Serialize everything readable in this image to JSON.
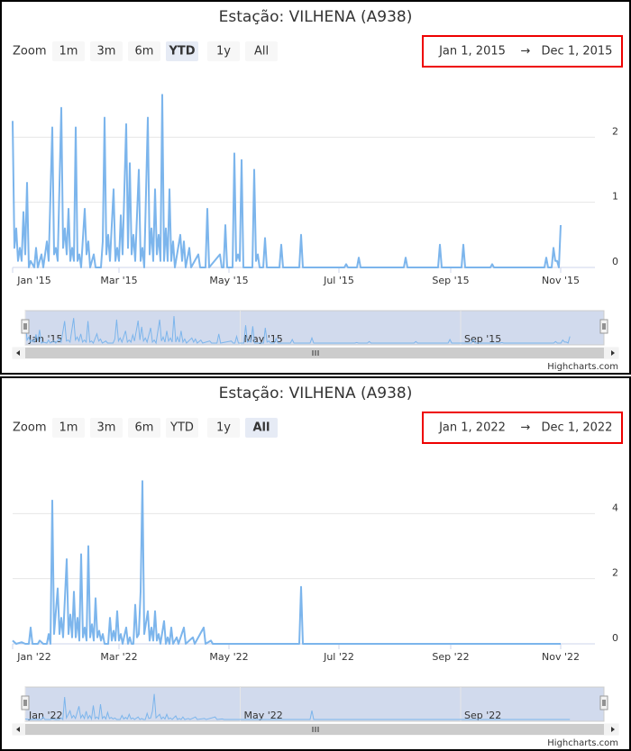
{
  "chart_data": [
    {
      "type": "line",
      "title": "Estação: VILHENA (A938)",
      "zoom_label": "Zoom",
      "zoom_buttons": [
        "1m",
        "3m",
        "6m",
        "YTD",
        "1y",
        "All"
      ],
      "zoom_selected": 3,
      "zoom_disabled": [
        4,
        5
      ],
      "range_from": "Jan 1, 2015",
      "range_arrow": "→",
      "range_to": "Dec 1, 2015",
      "color": "#7cb5ec",
      "x": [
        0,
        1,
        2,
        3,
        4,
        5,
        6,
        7,
        8,
        9,
        10,
        12,
        13,
        14,
        16,
        17,
        19,
        20,
        22,
        23,
        24,
        25,
        27,
        28,
        29,
        30,
        31,
        32,
        33,
        34,
        35,
        36,
        37,
        38,
        40,
        41,
        42,
        43,
        45,
        46,
        49,
        50,
        51,
        52,
        53,
        54,
        56,
        57,
        58,
        59,
        60,
        61,
        63,
        64,
        65,
        66,
        67,
        68,
        70,
        71,
        72,
        73,
        75,
        76,
        77,
        78,
        79,
        80,
        81,
        82,
        83,
        84,
        85,
        86,
        87,
        88,
        89,
        90,
        93,
        94,
        95,
        96,
        98,
        99,
        103,
        104,
        107,
        108,
        109,
        115,
        116,
        117,
        118,
        119,
        122,
        123,
        124,
        125,
        126,
        127,
        128,
        133,
        134,
        135,
        136,
        137,
        139,
        140,
        141,
        148,
        149,
        150,
        159,
        160,
        161,
        184,
        185,
        186,
        191,
        192,
        193,
        217,
        218,
        219,
        236,
        237,
        238,
        249,
        250,
        251,
        265,
        266,
        267,
        295,
        296,
        297,
        299,
        300,
        301,
        302,
        303,
        304
      ],
      "values": [
        2.25,
        0.3,
        0.6,
        0.1,
        0.3,
        0.1,
        0.85,
        0.2,
        1.3,
        0,
        0.1,
        0,
        0.3,
        0,
        0.2,
        0,
        0.4,
        0.1,
        2.15,
        0.2,
        0.3,
        0.1,
        2.45,
        0.3,
        0.6,
        0.2,
        0.9,
        0.1,
        0.3,
        0.1,
        2.15,
        0.1,
        0.2,
        0,
        0.9,
        0.2,
        0.4,
        0,
        0.2,
        0,
        0,
        0.4,
        2.3,
        0.2,
        0.5,
        0.1,
        1.2,
        0.1,
        0.3,
        0.1,
        0.8,
        0.2,
        2.2,
        0.3,
        1.6,
        0.2,
        0.5,
        0.1,
        1.5,
        0.1,
        0.3,
        0,
        2.3,
        0.2,
        0.6,
        0.1,
        1.2,
        0.2,
        0.5,
        0.1,
        2.65,
        0.1,
        0.6,
        0.1,
        1.2,
        0.1,
        0.4,
        0,
        0.5,
        0.1,
        0.4,
        0,
        0.3,
        0,
        0.2,
        0,
        0,
        0.9,
        0,
        0.2,
        0,
        0,
        0.65,
        0,
        0,
        1.75,
        0.1,
        0.2,
        0.1,
        1.65,
        0,
        0,
        1.5,
        0.1,
        0.2,
        0,
        0,
        0.45,
        0,
        0,
        0.35,
        0,
        0,
        0.5,
        0,
        0,
        0.05,
        0,
        0,
        0.15,
        0,
        0,
        0.15,
        0,
        0,
        0.35,
        0,
        0,
        0.35,
        0,
        0,
        0.05,
        0,
        0,
        0.15,
        0,
        0,
        0.3,
        0.1,
        0.1,
        0,
        0.65
      ],
      "xlim": [
        0,
        323
      ],
      "ylim": [
        0,
        3
      ],
      "yticks": [
        0,
        1,
        2
      ],
      "grid": true,
      "xticks": [
        {
          "value": 0,
          "label": "Jan '15"
        },
        {
          "value": 59,
          "label": "Mar '15"
        },
        {
          "value": 120,
          "label": "May '15"
        },
        {
          "value": 181,
          "label": "Jul '15"
        },
        {
          "value": 243,
          "label": "Sep '15"
        },
        {
          "value": 304,
          "label": "Nov '15"
        }
      ],
      "navigator_ticks": [
        {
          "value": 0,
          "label": "Jan '15"
        },
        {
          "value": 120,
          "label": "May '15"
        },
        {
          "value": 243,
          "label": "Sep '15"
        }
      ],
      "credits": "Highcharts.com"
    },
    {
      "type": "line",
      "title": "Estação: VILHENA (A938)",
      "zoom_label": "Zoom",
      "zoom_buttons": [
        "1m",
        "3m",
        "6m",
        "YTD",
        "1y",
        "All"
      ],
      "zoom_selected": 5,
      "zoom_disabled": [
        4
      ],
      "range_from": "Jan 1, 2022",
      "range_arrow": "→",
      "range_to": "Dec 1, 2022",
      "color": "#7cb5ec",
      "x": [
        0,
        2,
        5,
        7,
        9,
        10,
        11,
        14,
        15,
        17,
        19,
        20,
        21,
        22,
        23,
        25,
        26,
        27,
        28,
        30,
        31,
        32,
        33,
        34,
        35,
        36,
        37,
        38,
        39,
        40,
        41,
        42,
        43,
        44,
        45,
        46,
        47,
        48,
        49,
        50,
        51,
        53,
        54,
        55,
        56,
        57,
        58,
        59,
        60,
        61,
        63,
        64,
        65,
        66,
        67,
        68,
        69,
        70,
        71,
        72,
        73,
        75,
        76,
        77,
        78,
        79,
        80,
        81,
        82,
        84,
        85,
        86,
        87,
        88,
        89,
        91,
        92,
        95,
        96,
        100,
        101,
        106,
        107,
        110,
        111,
        159,
        160,
        161,
        304
      ],
      "values": [
        0.1,
        0,
        0.05,
        0,
        0,
        0.5,
        0,
        0,
        0.1,
        0,
        0,
        0.3,
        0,
        4.4,
        0.3,
        1.7,
        0.3,
        0.8,
        0.2,
        2.6,
        0.3,
        0.9,
        0.2,
        1.6,
        0.2,
        0.8,
        0.1,
        2.75,
        0.2,
        0.5,
        0.1,
        3.0,
        0.2,
        0.6,
        0.1,
        1.4,
        0.2,
        0.4,
        0.1,
        0.3,
        0,
        0,
        0.8,
        0.1,
        0.4,
        0.1,
        1.0,
        0.1,
        0.3,
        0,
        0.5,
        0,
        0.2,
        0,
        0,
        1.2,
        0.2,
        0.3,
        1.6,
        5.0,
        0.3,
        1.0,
        0.1,
        0.5,
        0.1,
        1.0,
        0.1,
        0.3,
        0,
        0.7,
        0,
        0.2,
        0,
        0.5,
        0,
        0.2,
        0,
        0.5,
        0,
        0.2,
        0,
        0.5,
        0,
        0.1,
        0,
        0,
        1.75,
        0,
        0
      ],
      "xlim": [
        0,
        323
      ],
      "ylim": [
        0,
        6
      ],
      "yticks": [
        0,
        2,
        4
      ],
      "grid": true,
      "xticks": [
        {
          "value": 0,
          "label": "Jan '22"
        },
        {
          "value": 59,
          "label": "Mar '22"
        },
        {
          "value": 120,
          "label": "May '22"
        },
        {
          "value": 181,
          "label": "Jul '22"
        },
        {
          "value": 243,
          "label": "Sep '22"
        },
        {
          "value": 304,
          "label": "Nov '22"
        }
      ],
      "navigator_ticks": [
        {
          "value": 0,
          "label": "Jan '22"
        },
        {
          "value": 120,
          "label": "May '22"
        },
        {
          "value": 243,
          "label": "Sep '22"
        }
      ],
      "credits": "Highcharts.com"
    }
  ]
}
